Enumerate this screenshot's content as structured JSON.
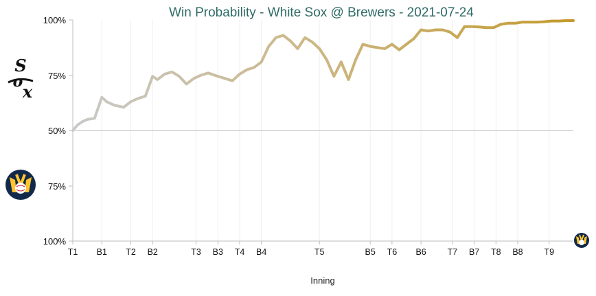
{
  "chart_data": {
    "type": "line",
    "title": "Win Probability - White Sox @ Brewers - 2021-07-24",
    "xlabel": "Inning",
    "ylabel": "",
    "y_ticks_top": [
      "100%",
      "75%",
      "50%"
    ],
    "y_ticks_bottom": [
      "75%",
      "100%"
    ],
    "midline": 0.5,
    "ylim": [
      0,
      1
    ],
    "x_ticks": [
      {
        "label": "T1",
        "x": 0
      },
      {
        "label": "B1",
        "x": 6
      },
      {
        "label": "T2",
        "x": 12
      },
      {
        "label": "B2",
        "x": 16.5
      },
      {
        "label": "T3",
        "x": 25.5
      },
      {
        "label": "B3",
        "x": 30
      },
      {
        "label": "T4",
        "x": 34.5
      },
      {
        "label": "B4",
        "x": 39
      },
      {
        "label": "T5",
        "x": 51
      },
      {
        "label": "B5",
        "x": 61.5
      },
      {
        "label": "T6",
        "x": 66
      },
      {
        "label": "B6",
        "x": 72
      },
      {
        "label": "T7",
        "x": 78.5
      },
      {
        "label": "B7",
        "x": 83
      },
      {
        "label": "T8",
        "x": 87.5
      },
      {
        "label": "B8",
        "x": 92
      },
      {
        "label": "T9",
        "x": 98.5
      }
    ],
    "x_range": [
      0,
      103.5
    ],
    "series": [
      {
        "team_top": "White Sox",
        "team_bottom": "Brewers",
        "x": [
          0,
          1,
          2,
          3,
          4.5,
          6,
          7,
          8.5,
          10.5,
          12,
          13.5,
          15,
          16.5,
          17.5,
          19,
          20.5,
          22,
          23.5,
          25,
          26.5,
          28,
          30,
          31.5,
          33,
          34.5,
          36,
          37.5,
          39,
          40.5,
          42,
          43.5,
          45,
          46.5,
          48,
          49.5,
          51,
          52.5,
          54,
          55.5,
          57,
          58.5,
          60,
          61.5,
          63,
          64.5,
          66,
          67.5,
          69,
          70.5,
          72,
          73.5,
          75,
          76.5,
          78,
          79.5,
          81,
          82.5,
          84,
          85.5,
          87,
          88.5,
          90,
          91.5,
          93,
          94.5,
          96,
          97.5,
          99,
          100.5,
          102,
          103.5
        ],
        "values": [
          0.5,
          0.475,
          0.46,
          0.45,
          0.445,
          0.35,
          0.37,
          0.385,
          0.395,
          0.37,
          0.355,
          0.345,
          0.255,
          0.27,
          0.245,
          0.235,
          0.255,
          0.29,
          0.265,
          0.25,
          0.24,
          0.255,
          0.265,
          0.275,
          0.245,
          0.225,
          0.215,
          0.19,
          0.12,
          0.08,
          0.07,
          0.095,
          0.13,
          0.08,
          0.1,
          0.13,
          0.18,
          0.255,
          0.19,
          0.27,
          0.18,
          0.11,
          0.12,
          0.125,
          0.13,
          0.11,
          0.135,
          0.11,
          0.085,
          0.045,
          0.05,
          0.045,
          0.045,
          0.055,
          0.08,
          0.03,
          0.03,
          0.032,
          0.035,
          0.035,
          0.02,
          0.015,
          0.015,
          0.01,
          0.01,
          0.01,
          0.008,
          0.005,
          0.005,
          0.003,
          0.003
        ]
      }
    ],
    "line_color_start": "#c9c9c9",
    "line_color_end": "#c49a2e",
    "grid": "vertical",
    "midline_color": "#c8c8c8"
  },
  "logos": {
    "top": "white-sox-logo",
    "bottom": "brewers-logo",
    "end_marker": "brewers-logo-small"
  },
  "colors": {
    "brewers_navy": "#13294b",
    "brewers_gold": "#ffc52f",
    "white_sox_black": "#111111"
  }
}
